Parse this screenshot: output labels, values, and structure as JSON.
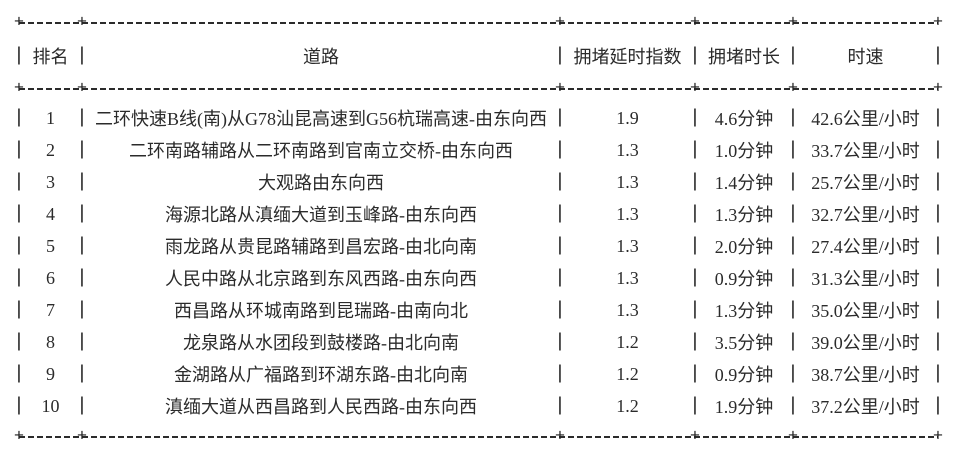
{
  "page": {
    "background_color": "#ffffff",
    "text_color": "#2b2b2b"
  },
  "glyphs": {
    "cross": "+",
    "vertical": "|"
  },
  "chart_data": {
    "type": "table",
    "columns": [
      "排名",
      "道路",
      "拥堵延时指数",
      "拥堵时长",
      "时速"
    ],
    "rows": [
      {
        "rank": "1",
        "road": "二环快速B线(南)从G78汕昆高速到G56杭瑞高速-由东向西",
        "delay_index": "1.9",
        "congestion_duration": "4.6分钟",
        "speed": "42.6公里/小时"
      },
      {
        "rank": "2",
        "road": "二环南路辅路从二环南路到官南立交桥-由东向西",
        "delay_index": "1.3",
        "congestion_duration": "1.0分钟",
        "speed": "33.7公里/小时"
      },
      {
        "rank": "3",
        "road": "大观路由东向西",
        "delay_index": "1.3",
        "congestion_duration": "1.4分钟",
        "speed": "25.7公里/小时"
      },
      {
        "rank": "4",
        "road": "海源北路从滇缅大道到玉峰路-由东向西",
        "delay_index": "1.3",
        "congestion_duration": "1.3分钟",
        "speed": "32.7公里/小时"
      },
      {
        "rank": "5",
        "road": "雨龙路从贵昆路辅路到昌宏路-由北向南",
        "delay_index": "1.3",
        "congestion_duration": "2.0分钟",
        "speed": "27.4公里/小时"
      },
      {
        "rank": "6",
        "road": "人民中路从北京路到东风西路-由东向西",
        "delay_index": "1.3",
        "congestion_duration": "0.9分钟",
        "speed": "31.3公里/小时"
      },
      {
        "rank": "7",
        "road": "西昌路从环城南路到昆瑞路-由南向北",
        "delay_index": "1.3",
        "congestion_duration": "1.3分钟",
        "speed": "35.0公里/小时"
      },
      {
        "rank": "8",
        "road": "龙泉路从水团段到鼓楼路-由北向南",
        "delay_index": "1.2",
        "congestion_duration": "3.5分钟",
        "speed": "39.0公里/小时"
      },
      {
        "rank": "9",
        "road": "金湖路从广福路到环湖东路-由北向南",
        "delay_index": "1.2",
        "congestion_duration": "0.9分钟",
        "speed": "38.7公里/小时"
      },
      {
        "rank": "10",
        "road": "滇缅大道从西昌路到人民西路-由东向西",
        "delay_index": "1.2",
        "congestion_duration": "1.9分钟",
        "speed": "37.2公里/小时"
      }
    ]
  }
}
